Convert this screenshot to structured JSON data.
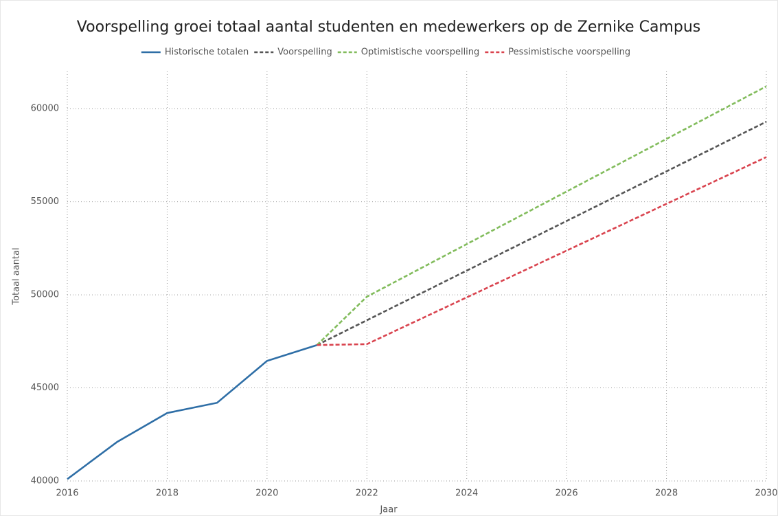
{
  "chart_data": {
    "type": "line",
    "title": "Voorspelling groei totaal aantal studenten en medewerkers op de Zernike Campus",
    "x_label": "Jaar",
    "y_label": "Totaal aantal",
    "series": [
      {
        "name": "Historische totalen",
        "color": "#2e6ea6",
        "dashed": false,
        "x": [
          2016,
          2017,
          2018,
          2019,
          2020,
          2021
        ],
        "values": [
          40100,
          42100,
          43650,
          44200,
          46450,
          47300
        ]
      },
      {
        "name": "Voorspelling",
        "color": "#555555",
        "dashed": true,
        "x": [
          2021,
          2030
        ],
        "values": [
          47300,
          59300
        ]
      },
      {
        "name": "Optimistische voorspelling",
        "color": "#82bc5c",
        "dashed": true,
        "x": [
          2021,
          2022,
          2030
        ],
        "values": [
          47300,
          49900,
          61200
        ]
      },
      {
        "name": "Pessimistische voorspelling",
        "color": "#d9434e",
        "dashed": true,
        "x": [
          2021,
          2022,
          2030
        ],
        "values": [
          47300,
          47350,
          57400
        ]
      }
    ],
    "xlim": [
      2016,
      2030
    ],
    "xticks": [
      2016,
      2018,
      2020,
      2022,
      2024,
      2026,
      2028,
      2030
    ],
    "ylim": [
      40000,
      62000
    ],
    "yticks": [
      40000,
      45000,
      50000,
      55000,
      60000
    ],
    "grid": true,
    "legend": "top"
  }
}
